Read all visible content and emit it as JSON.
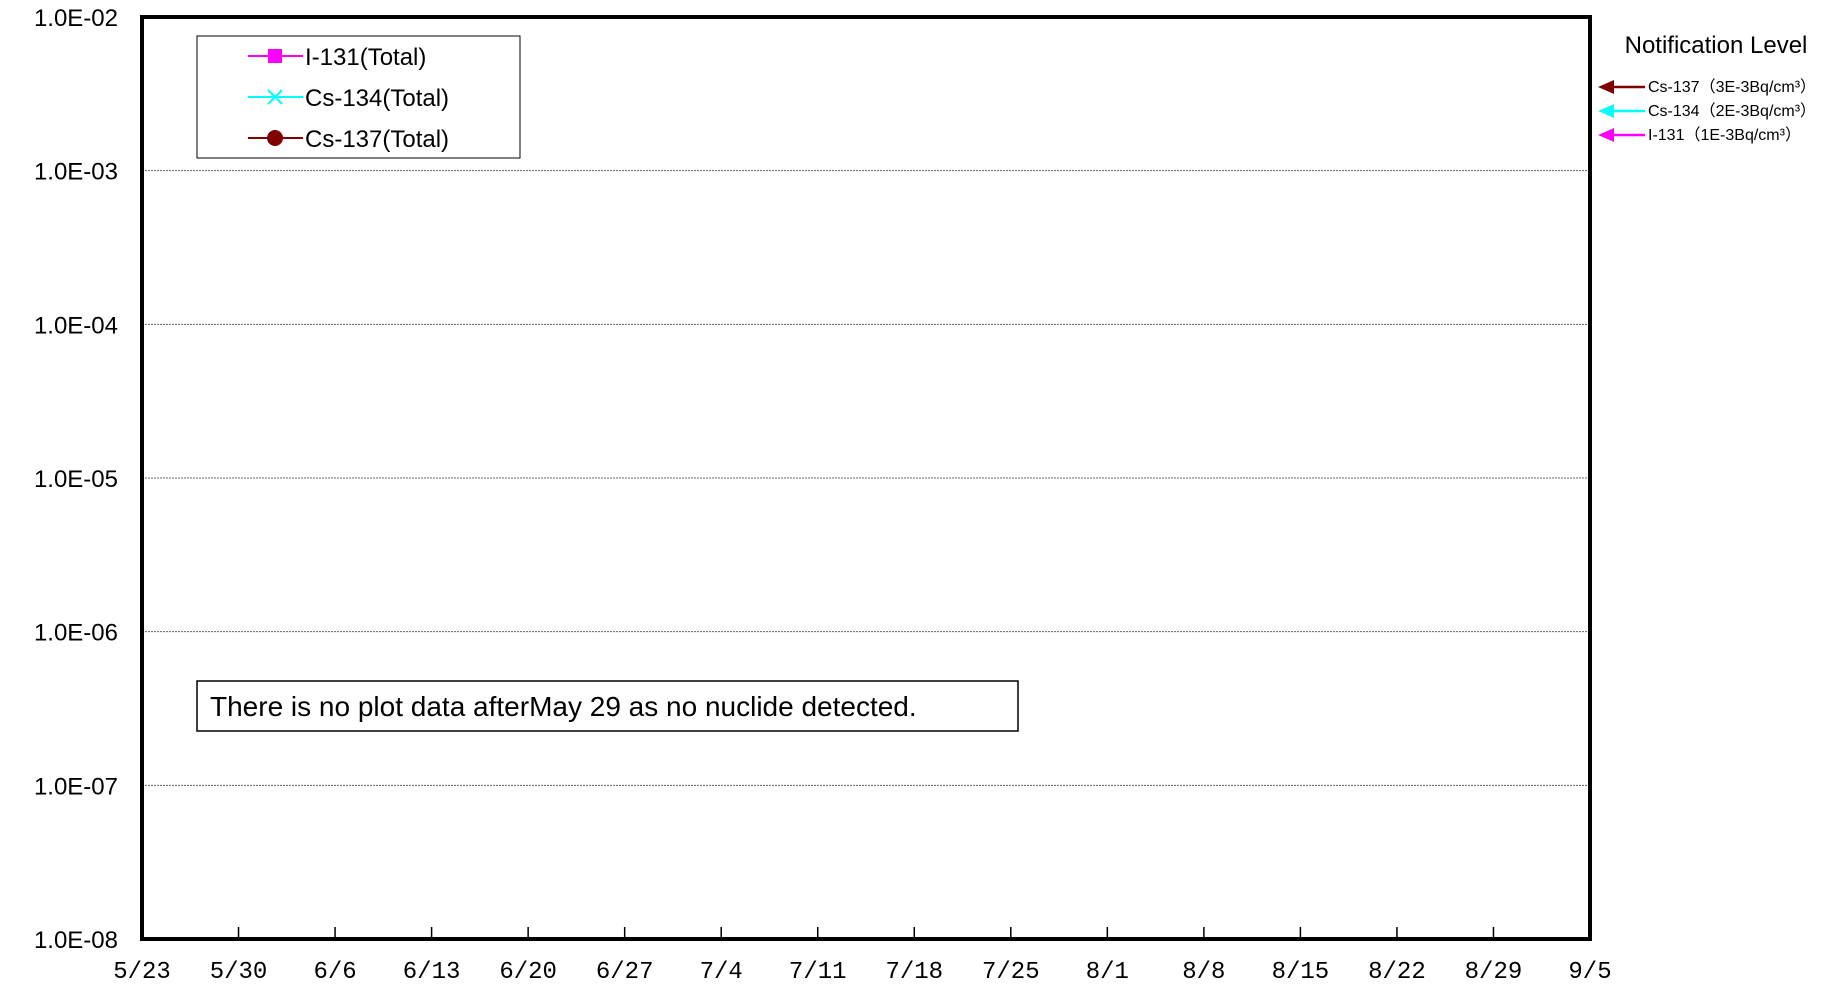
{
  "chart_data": {
    "type": "line",
    "y_scale": "log",
    "ylim": [
      "1.0E-08",
      "1.0E-02"
    ],
    "y_ticks": [
      "1.0E-02",
      "1.0E-03",
      "1.0E-04",
      "1.0E-05",
      "1.0E-06",
      "1.0E-07",
      "1.0E-08"
    ],
    "x_ticks": [
      "5/23",
      "5/30",
      "6/6",
      "6/13",
      "6/20",
      "6/27",
      "7/4",
      "7/11",
      "7/18",
      "7/25",
      "8/1",
      "8/8",
      "8/15",
      "8/22",
      "8/29",
      "9/5"
    ],
    "grid": "horizontal",
    "legend_position": "top-left",
    "series": [
      {
        "name": "I-131(Total)",
        "color": "#ff00ff",
        "marker": "square",
        "values": []
      },
      {
        "name": "Cs-134(Total)",
        "color": "#00ffff",
        "marker": "x",
        "values": []
      },
      {
        "name": "Cs-137(Total)",
        "color": "#800000",
        "marker": "circle",
        "values": []
      }
    ],
    "annotation": "There is no plot data afterMay 29  as no nuclide detected.",
    "notification": {
      "title": "Notification Level",
      "levels": [
        {
          "label": "Cs-137（3E-3Bq/cm³）",
          "color": "#800000",
          "value": "3E-3"
        },
        {
          "label": "Cs-134（2E-3Bq/cm³）",
          "color": "#00ffff",
          "value": "2E-3"
        },
        {
          "label": "I-131（1E-3Bq/cm³）",
          "color": "#ff00ff",
          "value": "1E-3"
        }
      ]
    }
  }
}
